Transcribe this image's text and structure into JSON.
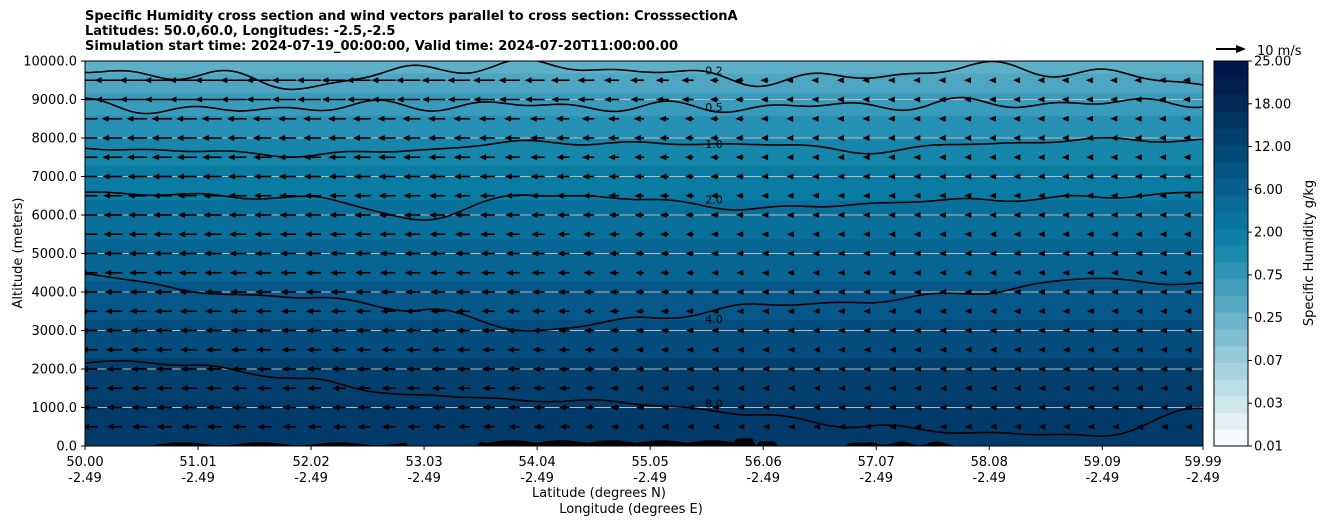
{
  "title_lines": [
    "Specific Humidity cross section and wind vectors parallel to cross section: CrosssectionA",
    "Latitudes: 50.0,60.0, Longitudes: -2.5,-2.5",
    "Simulation start time: 2024-07-19_00:00:00, Valid time: 2024-07-20T11:00:00.00"
  ],
  "chart_data": {
    "type": "contour",
    "title": "Specific Humidity cross section and wind vectors parallel to cross section: CrosssectionA",
    "xlabel_line1": "Latitude (degrees N)",
    "xlabel_line2": "Longitude (degrees E)",
    "ylabel": "Altitude (meters)",
    "ylim": [
      0,
      10000
    ],
    "xlim": [
      50.0,
      59.99
    ],
    "y_ticks": [
      "0.0",
      "1000.0",
      "2000.0",
      "3000.0",
      "4000.0",
      "5000.0",
      "6000.0",
      "7000.0",
      "8000.0",
      "9000.0",
      "10000.0"
    ],
    "x_ticks": [
      {
        "lat": "50.00",
        "lon": "-2.49"
      },
      {
        "lat": "51.01",
        "lon": "-2.49"
      },
      {
        "lat": "52.02",
        "lon": "-2.49"
      },
      {
        "lat": "53.03",
        "lon": "-2.49"
      },
      {
        "lat": "54.04",
        "lon": "-2.49"
      },
      {
        "lat": "55.05",
        "lon": "-2.49"
      },
      {
        "lat": "56.06",
        "lon": "-2.49"
      },
      {
        "lat": "57.07",
        "lon": "-2.49"
      },
      {
        "lat": "58.08",
        "lon": "-2.49"
      },
      {
        "lat": "59.09",
        "lon": "-2.49"
      },
      {
        "lat": "59.99",
        "lon": "-2.49"
      }
    ],
    "grid": true,
    "colorbar": {
      "label": "Specific Humidity g/kg",
      "tick_labels": [
        "0.01",
        "0.03",
        "0.07",
        "0.25",
        "0.75",
        "2.00",
        "6.00",
        "12.00",
        "18.00",
        "25.00"
      ],
      "colors": [
        "#f7fbfd",
        "#e3f1f5",
        "#cfe7ee",
        "#bcdee8",
        "#a7d3e0",
        "#93c9d9",
        "#7fbfd2",
        "#6bb4cb",
        "#57a9c4",
        "#439fbd",
        "#3094b6",
        "#1c89ae",
        "#0e7fa8",
        "#0a74a0",
        "#086a98",
        "#065f8e",
        "#045583",
        "#034a78",
        "#03406c",
        "#023661",
        "#022b57",
        "#021f4d",
        "#03174a"
      ]
    },
    "contours": [
      {
        "label": "0.2",
        "altitudes": [
          9700,
          9650,
          9350,
          9800,
          9900,
          9750,
          9500,
          9600,
          9850,
          9700,
          9400
        ]
      },
      {
        "label": "0.5",
        "altitudes": [
          8900,
          8700,
          8800,
          8850,
          8850,
          8800,
          8800,
          8850,
          8900,
          8900,
          8950
        ]
      },
      {
        "label": "1.0",
        "altitudes": [
          7750,
          7650,
          7550,
          7700,
          7900,
          7850,
          7850,
          7650,
          7850,
          7950,
          7950
        ]
      },
      {
        "label": "2.0",
        "altitudes": [
          6600,
          6500,
          6450,
          5900,
          6550,
          6400,
          6150,
          6300,
          6400,
          6450,
          6600
        ]
      },
      {
        "label": "4.0",
        "altitudes": [
          4500,
          4000,
          3850,
          3550,
          3000,
          3300,
          3650,
          3750,
          4000,
          4350,
          4200
        ]
      },
      {
        "label": "8.0",
        "altitudes": [
          2200,
          2100,
          1700,
          1300,
          1200,
          1100,
          800,
          500,
          350,
          250,
          950
        ]
      }
    ],
    "quiver_key": "10 m/s",
    "wind_u_ms": [
      -4,
      -4,
      -3.5,
      -3.5,
      -3,
      -2,
      -1.5,
      -1,
      -0.5,
      -1,
      -1.5
    ]
  }
}
